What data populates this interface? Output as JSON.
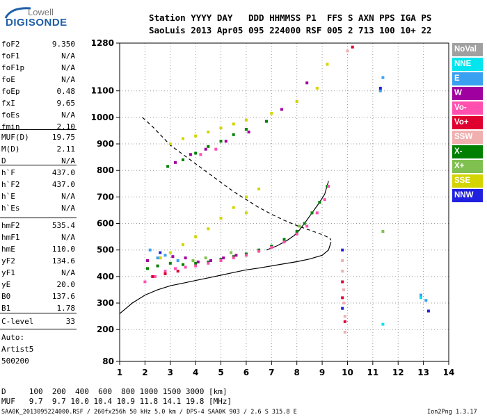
{
  "logo": {
    "line1": "Lowell",
    "line2": "DIGISONDE"
  },
  "header": {
    "line1": "Station YYYY DAY   DDD HHMMSS P1  FFS S AXN PPS IGA PS",
    "line2": "SaoLuis 2013 Apr05 095 224000 RSF 005 2 713 100 10+ 22"
  },
  "params_group1": [
    {
      "name": "foF2",
      "value": "9.350"
    },
    {
      "name": "foF1",
      "value": "N/A"
    },
    {
      "name": "foF1p",
      "value": "N/A"
    },
    {
      "name": "foE",
      "value": "N/A"
    },
    {
      "name": "foEp",
      "value": "0.48"
    },
    {
      "name": "fxI",
      "value": "9.65"
    },
    {
      "name": "foEs",
      "value": "N/A"
    },
    {
      "name": "fmin",
      "value": "2.10"
    }
  ],
  "params_group2": [
    {
      "name": "MUF(D)",
      "value": "19.75"
    },
    {
      "name": "M(D)",
      "value": "2.11"
    },
    {
      "name": "D",
      "value": "N/A"
    }
  ],
  "params_group3": [
    {
      "name": "h`F",
      "value": "437.0"
    },
    {
      "name": "h`F2",
      "value": "437.0"
    },
    {
      "name": "h`E",
      "value": "N/A"
    },
    {
      "name": "h`Es",
      "value": "N/A"
    }
  ],
  "params_group4": [
    {
      "name": "hmF2",
      "value": "535.4"
    },
    {
      "name": "hmF1",
      "value": "N/A"
    },
    {
      "name": "hmE",
      "value": "110.0"
    },
    {
      "name": "yF2",
      "value": "134.6"
    },
    {
      "name": "yF1",
      "value": "N/A"
    },
    {
      "name": "yE",
      "value": "20.0"
    },
    {
      "name": "B0",
      "value": "137.6"
    },
    {
      "name": "B1",
      "value": "1.78"
    }
  ],
  "params_group5": [
    {
      "name": "C-level",
      "value": "33"
    }
  ],
  "notes": [
    "Auto:",
    "Artist5",
    "500200"
  ],
  "legend": [
    {
      "label": "NoVal",
      "color": "#a0a0a0"
    },
    {
      "label": "NNE",
      "color": "#00e5ee"
    },
    {
      "label": "E",
      "color": "#3aa0f0"
    },
    {
      "label": "W",
      "color": "#a000a0"
    },
    {
      "label": "Vo-",
      "color": "#ff50b0"
    },
    {
      "label": "Vo+",
      "color": "#e00030"
    },
    {
      "label": "SSW",
      "color": "#f0b0b0"
    },
    {
      "label": "X-",
      "color": "#008000"
    },
    {
      "label": "X+",
      "color": "#80c050"
    },
    {
      "label": "SSE",
      "color": "#d4d400"
    },
    {
      "label": "NNW",
      "color": "#2020e0"
    }
  ],
  "table": {
    "d_row": "D     100  200  400  600  800 1000 1500 3000 [km]",
    "muf_row": "MUF   9.7  9.7 10.0 10.4 10.9 11.8 14.1 19.8 [MHz]"
  },
  "footer": {
    "left": "SAA0K_2013095224000.RSF / 260fx256h 50 kHz 5.0 km / DPS-4 SAA0K 903 / 2.6 S 315.8 E",
    "right": "Ion2Png 1.3.17"
  },
  "chart_data": {
    "type": "scatter",
    "xlim": [
      1,
      14
    ],
    "ylim": [
      80,
      1280
    ],
    "x_ticks": [
      1,
      2,
      3,
      4,
      5,
      6,
      7,
      8,
      9,
      10,
      11,
      12,
      13,
      14
    ],
    "y_ticks": [
      80,
      200,
      300,
      400,
      500,
      600,
      700,
      800,
      900,
      1000,
      1100,
      1280
    ],
    "grid": "dotted",
    "series": [
      {
        "name": "X-",
        "color": "#008000",
        "points": [
          [
            2.1,
            430
          ],
          [
            2.5,
            440
          ],
          [
            3.0,
            450
          ],
          [
            3.5,
            445
          ],
          [
            4.0,
            450
          ],
          [
            4.5,
            455
          ],
          [
            5.0,
            465
          ],
          [
            5.5,
            475
          ],
          [
            6.0,
            485
          ],
          [
            6.5,
            500
          ],
          [
            7.0,
            515
          ],
          [
            7.5,
            540
          ],
          [
            8.0,
            570
          ],
          [
            8.3,
            600
          ],
          [
            8.6,
            640
          ],
          [
            8.9,
            680
          ],
          [
            9.2,
            740
          ],
          [
            2.9,
            815
          ],
          [
            3.5,
            840
          ],
          [
            4.0,
            865
          ],
          [
            4.5,
            890
          ],
          [
            5.0,
            910
          ],
          [
            5.5,
            935
          ],
          [
            6.0,
            955
          ],
          [
            6.8,
            985
          ]
        ]
      },
      {
        "name": "Vo-",
        "color": "#ff50b0",
        "points": [
          [
            2.0,
            380
          ],
          [
            2.4,
            400
          ],
          [
            2.8,
            420
          ],
          [
            3.2,
            430
          ],
          [
            3.6,
            435
          ],
          [
            4.0,
            440
          ],
          [
            4.5,
            450
          ],
          [
            5.0,
            460
          ],
          [
            5.5,
            470
          ],
          [
            6.0,
            480
          ],
          [
            6.5,
            495
          ],
          [
            7.0,
            510
          ],
          [
            7.5,
            530
          ],
          [
            8.0,
            560
          ],
          [
            8.4,
            590
          ],
          [
            8.8,
            640
          ],
          [
            9.1,
            690
          ],
          [
            9.25,
            740
          ],
          [
            4.2,
            860
          ],
          [
            4.8,
            880
          ]
        ]
      },
      {
        "name": "W",
        "color": "#a000a0",
        "points": [
          [
            2.1,
            460
          ],
          [
            2.6,
            470
          ],
          [
            3.1,
            475
          ],
          [
            3.6,
            470
          ],
          [
            4.1,
            455
          ],
          [
            4.6,
            460
          ],
          [
            5.1,
            470
          ],
          [
            5.6,
            480
          ],
          [
            3.2,
            830
          ],
          [
            3.8,
            860
          ],
          [
            4.4,
            880
          ],
          [
            5.2,
            910
          ],
          [
            6.1,
            945
          ],
          [
            7.4,
            1030
          ],
          [
            8.4,
            1130
          ]
        ]
      },
      {
        "name": "SSE",
        "color": "#d4d400",
        "points": [
          [
            2.6,
            470
          ],
          [
            3.0,
            490
          ],
          [
            3.5,
            520
          ],
          [
            4.0,
            550
          ],
          [
            4.5,
            580
          ],
          [
            5.0,
            620
          ],
          [
            5.5,
            660
          ],
          [
            6.0,
            700
          ],
          [
            6.5,
            730
          ],
          [
            3.0,
            900
          ],
          [
            3.5,
            920
          ],
          [
            4.0,
            930
          ],
          [
            4.5,
            945
          ],
          [
            5.0,
            960
          ],
          [
            5.5,
            975
          ],
          [
            6.0,
            990
          ],
          [
            7.0,
            1015
          ],
          [
            8.0,
            1060
          ],
          [
            8.8,
            1110
          ],
          [
            9.2,
            1200
          ],
          [
            6.0,
            640
          ]
        ]
      },
      {
        "name": "E",
        "color": "#3aa0f0",
        "points": [
          [
            2.2,
            500
          ],
          [
            2.5,
            470
          ],
          [
            2.8,
            480
          ],
          [
            3.3,
            460
          ],
          [
            11.3,
            1100
          ],
          [
            11.4,
            1150
          ],
          [
            12.9,
            330
          ],
          [
            13.1,
            310
          ]
        ]
      },
      {
        "name": "NNW",
        "color": "#2020e0",
        "points": [
          [
            9.8,
            500
          ],
          [
            9.8,
            280
          ],
          [
            11.3,
            1110
          ],
          [
            13.2,
            270
          ],
          [
            2.6,
            490
          ]
        ]
      },
      {
        "name": "Vo+",
        "color": "#e00030",
        "points": [
          [
            2.3,
            400
          ],
          [
            2.8,
            410
          ],
          [
            3.3,
            420
          ],
          [
            9.8,
            380
          ],
          [
            9.8,
            320
          ],
          [
            9.9,
            230
          ],
          [
            10.2,
            1265
          ]
        ]
      },
      {
        "name": "SSW",
        "color": "#f0b0b0",
        "points": [
          [
            9.8,
            460
          ],
          [
            9.8,
            420
          ],
          [
            9.85,
            350
          ],
          [
            9.85,
            300
          ],
          [
            9.9,
            250
          ],
          [
            9.9,
            190
          ],
          [
            10.0,
            1250
          ]
        ]
      },
      {
        "name": "X+",
        "color": "#80c050",
        "points": [
          [
            3.9,
            460
          ],
          [
            4.4,
            470
          ],
          [
            5.4,
            490
          ],
          [
            8.1,
            590
          ],
          [
            11.4,
            570
          ]
        ]
      },
      {
        "name": "NNE",
        "color": "#00e5ee",
        "points": [
          [
            11.4,
            220
          ],
          [
            12.9,
            320
          ]
        ]
      }
    ],
    "lines": [
      {
        "style": "solid",
        "points": [
          [
            1.0,
            260
          ],
          [
            1.5,
            300
          ],
          [
            2.0,
            330
          ],
          [
            2.5,
            350
          ],
          [
            3.0,
            365
          ],
          [
            3.5,
            375
          ],
          [
            4.0,
            385
          ],
          [
            4.5,
            395
          ],
          [
            5.0,
            405
          ],
          [
            5.5,
            415
          ],
          [
            6.0,
            425
          ],
          [
            6.5,
            432
          ],
          [
            7.0,
            440
          ],
          [
            7.5,
            448
          ],
          [
            8.0,
            456
          ],
          [
            8.5,
            466
          ],
          [
            9.0,
            480
          ],
          [
            9.25,
            500
          ],
          [
            9.35,
            530
          ]
        ]
      },
      {
        "style": "dashed",
        "points": [
          [
            1.9,
            1000
          ],
          [
            2.3,
            965
          ],
          [
            2.7,
            925
          ],
          [
            3.0,
            895
          ],
          [
            3.5,
            860
          ],
          [
            4.0,
            825
          ],
          [
            4.5,
            790
          ],
          [
            5.0,
            755
          ],
          [
            5.5,
            720
          ],
          [
            6.0,
            690
          ],
          [
            6.5,
            660
          ],
          [
            7.0,
            635
          ],
          [
            7.5,
            612
          ],
          [
            8.0,
            592
          ],
          [
            8.5,
            575
          ],
          [
            9.0,
            558
          ],
          [
            9.3,
            545
          ],
          [
            9.35,
            537
          ]
        ]
      },
      {
        "style": "solid",
        "points": [
          [
            6.8,
            500
          ],
          [
            7.2,
            515
          ],
          [
            7.6,
            535
          ],
          [
            7.9,
            555
          ],
          [
            8.1,
            575
          ],
          [
            8.3,
            600
          ],
          [
            8.6,
            640
          ],
          [
            8.9,
            680
          ],
          [
            9.1,
            710
          ],
          [
            9.25,
            760
          ]
        ]
      }
    ]
  }
}
